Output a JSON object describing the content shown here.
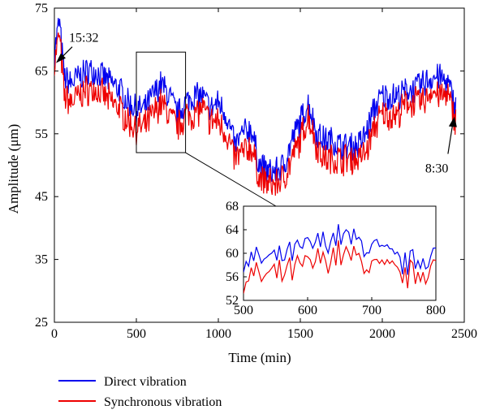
{
  "chart_data": {
    "type": "line",
    "title": "",
    "xlabel": "Time (min)",
    "ylabel": "Amplitude (μm)",
    "xlim": [
      0,
      2500
    ],
    "ylim": [
      25,
      75
    ],
    "xticks": [
      0,
      500,
      1000,
      1500,
      2000,
      2500
    ],
    "yticks": [
      25,
      35,
      45,
      55,
      65,
      75
    ],
    "grid": false,
    "legend_position": "bottom-left",
    "series": [
      {
        "name": "Direct vibration",
        "color": "#0000ee",
        "x": [
          0,
          30,
          60,
          100,
          150,
          200,
          250,
          300,
          350,
          400,
          450,
          500,
          550,
          600,
          650,
          700,
          750,
          800,
          850,
          900,
          950,
          1000,
          1050,
          1100,
          1150,
          1200,
          1250,
          1300,
          1350,
          1400,
          1450,
          1500,
          1550,
          1600,
          1650,
          1700,
          1750,
          1800,
          1850,
          1900,
          1950,
          2000,
          2050,
          2100,
          2150,
          2200,
          2250,
          2300,
          2350,
          2400,
          2450
        ],
        "y": [
          68,
          73,
          64,
          63,
          64,
          65,
          65,
          64,
          63,
          62,
          60,
          59,
          59,
          61,
          63,
          61,
          58,
          60,
          61,
          61,
          59,
          60,
          58,
          53,
          55,
          56,
          50,
          49,
          49,
          50,
          54,
          57,
          60,
          55,
          54,
          54,
          53,
          53,
          53,
          55,
          59,
          61,
          61,
          61,
          62,
          62,
          63,
          64,
          64,
          63,
          59
        ]
      },
      {
        "name": "Synchronous vibration",
        "color": "#ee0000",
        "x": [
          0,
          30,
          60,
          100,
          150,
          200,
          250,
          300,
          350,
          400,
          450,
          500,
          550,
          600,
          650,
          700,
          750,
          800,
          850,
          900,
          950,
          1000,
          1050,
          1100,
          1150,
          1200,
          1250,
          1300,
          1350,
          1400,
          1450,
          1500,
          1550,
          1600,
          1650,
          1700,
          1750,
          1800,
          1850,
          1900,
          1950,
          2000,
          2050,
          2100,
          2150,
          2200,
          2250,
          2300,
          2350,
          2400,
          2450
        ],
        "y": [
          66,
          71,
          61,
          60,
          61,
          62,
          62,
          61,
          60,
          59,
          57,
          56,
          56,
          58,
          60,
          58,
          56,
          58,
          58,
          59,
          57,
          57,
          55,
          51,
          52,
          53,
          48,
          47,
          47,
          48,
          51,
          54,
          58,
          53,
          51,
          51,
          51,
          51,
          51,
          52,
          56,
          58,
          58,
          58,
          60,
          60,
          60,
          62,
          61,
          61,
          57
        ]
      }
    ],
    "annotations": [
      {
        "text": "15:32",
        "x": 0,
        "y": 66
      },
      {
        "text": "8:30",
        "x": 2450,
        "y": 58
      }
    ],
    "inset": {
      "xlim": [
        500,
        800
      ],
      "ylim": [
        52,
        68
      ],
      "xticks": [
        500,
        600,
        700,
        800
      ],
      "yticks": [
        52,
        56,
        60,
        64,
        68
      ],
      "source_box": {
        "x": [
          500,
          800
        ],
        "y": [
          52,
          68
        ]
      }
    }
  }
}
